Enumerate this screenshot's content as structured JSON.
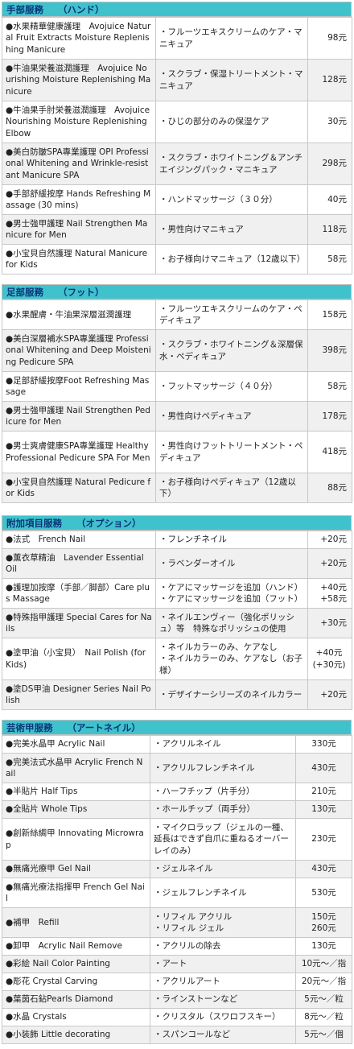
{
  "sections": [
    {
      "title": "手部服務",
      "subtitle": "（ハンド）",
      "rows": [
        {
          "name": "●水果精華健康護理　Avojuice Natural Fruit Extracts Moisture Replenishing Manicure",
          "desc": "・フルーツエキスクリームのケア・マニキュア",
          "price": "98元"
        },
        {
          "name": "●牛油果栄養滋潤護理　Avojuice Nourishing Moisture Replenishing Manicure",
          "desc": "・スクラブ・保湿トリートメント・マニキュア",
          "price": "128元"
        },
        {
          "name": "●牛油果手肘栄養滋潤護理　Avojuice Nourishing Moisture Replenishing Elbow",
          "desc": "・ひじの部分のみの保湿ケア",
          "price": "30元"
        },
        {
          "name": "●美白防皺SPA專業護理 OPI Professional Whitening and Wrinkle-resistant Manicure SPA",
          "desc": "・スクラブ・ホワイトニング＆アンチエイジングパック・マニキュア",
          "price": "298元"
        },
        {
          "name": "●手部舒緩按摩 Hands Refreshing Massage (30 mins)",
          "desc": "・ハンドマッサージ（３０分）",
          "price": "40元"
        },
        {
          "name": "●男士強甲護理 Nail Strengthen Manicure for Men",
          "desc": "・男性向けマニキュア",
          "price": "118元"
        },
        {
          "name": "●小宝貝自然護理 Natural Manicure for Kids",
          "desc": "・お子様向けマニキュア（12歳以下）",
          "price": "58元"
        }
      ]
    },
    {
      "title": "足部服務",
      "subtitle": "（フット）",
      "rows": [
        {
          "name": "●水果醒膚・牛油果深層滋潤護理",
          "desc": "・フルーツエキスクリームのケア・ペディキュア",
          "price": "158元"
        },
        {
          "name": "●美白深層補水SPA專業護理 Professional Whitening and Deep Moistening Pedicure SPA",
          "desc": "・スクラブ・ホワイトニング＆深層保水・ペディキュア",
          "price": "398元"
        },
        {
          "name": "●足部舒緩按摩Foot Refreshing Massage",
          "desc": "・フットマッサージ（４０分）",
          "price": "58元"
        },
        {
          "name": "●男士強甲護理 Nail Strengthen Pedicure for Men",
          "desc": "・男性向けペディキュア",
          "price": "178元"
        },
        {
          "name": "●男士爽膚健康SPA專業護理 Healthy Professional Pedicure SPA For Men",
          "desc": "・男性向けフットトリートメント・ペディキュア",
          "price": "418元"
        },
        {
          "name": "●小宝貝自然護理 Natural Pedicure for Kids",
          "desc": "・お子様向けペディキュア（12歳以下）",
          "price": "88元"
        }
      ]
    },
    {
      "title": "附加項目服務",
      "subtitle": "（オプション）",
      "rows": [
        {
          "name": "●法式　French Nail",
          "desc": "・フレンチネイル",
          "price": "+20元"
        },
        {
          "name": "●薫衣草精油　Lavender Essential Oil",
          "desc": "・ラベンダーオイル",
          "price": "+20元"
        },
        {
          "name": "●護理加按摩（手部／脚部）Care plus Massage",
          "desc": "・ケアにマッサージを追加（ハンド）\n・ケアにマッサージを追加（フット）",
          "price": "+40元\n+58元"
        },
        {
          "name": "●特殊指甲護理 Special Cares for Nails",
          "desc": "・ネイルエンヴィー（強化ポリッシュ）等　特殊なポリッシュの使用",
          "price": "+30元"
        },
        {
          "name": "●塗甲油（小宝貝）　Nail Polish (for Kids)",
          "desc": "・ネイルカラーのみ、ケアなし\n・ネイルカラーのみ、ケアなし（お子様）",
          "price": "+40元\n(+30元)"
        },
        {
          "name": "●塗DS甲油 Designer Series Nail Polish",
          "desc": "・デザイナーシリーズのネイルカラー",
          "price": "+20元"
        }
      ]
    },
    {
      "title": "芸術甲服務",
      "subtitle": "（アートネイル）",
      "rows": [
        {
          "name": "●完美水晶甲 Acrylic Nail",
          "desc": "・アクリルネイル",
          "price": "330元"
        },
        {
          "name": "●完美法式水晶甲 Acrylic French Nail",
          "desc": "・アクリルフレンチネイル",
          "price": "430元"
        },
        {
          "name": "●半貼片 Half Tips",
          "desc": "・ハーフチップ（片手分）",
          "price": "210元"
        },
        {
          "name": "●全貼片 Whole Tips",
          "desc": "・ホールチップ（両手分）",
          "price": "130元"
        },
        {
          "name": "●創新絲綢甲 Innovating Microwrap",
          "desc": "・マイクロラップ（ジェルの一種、延長はできず自爪に重ねるオーバーレイのみ）",
          "price": "230元"
        },
        {
          "name": "●無痛光療甲 Gel Nail",
          "desc": "・ジェルネイル",
          "price": "430元"
        },
        {
          "name": "●無痛光療法指揮甲 French Gel Nail",
          "desc": "・ジェルフレンチネイル",
          "price": "530元"
        },
        {
          "name": "●補甲　Refill",
          "desc": "・リフィル アクリル\n・リフィル ジェル",
          "price": "150元\n260元"
        },
        {
          "name": "●卸甲　Acrylic Nail Remove",
          "desc": "・アクリルの除去",
          "price": "130元"
        },
        {
          "name": "●彩絵 Nail Color Painting",
          "desc": "・アート",
          "price": "10元～／指"
        },
        {
          "name": "●彫花 Crystal Carving",
          "desc": "・アクリルアート",
          "price": "20元～／指"
        },
        {
          "name": "●葉茵石鉆Pearls Diamond",
          "desc": "・ラインストーンなど",
          "price": "5元～／粒"
        },
        {
          "name": "●水晶 Crystals",
          "desc": "・クリスタル（スワロフスキー）",
          "price": "8元～／粒"
        },
        {
          "name": "●小装飾 Little decorating",
          "desc": "・スパンコールなど",
          "price": "5元～／個"
        }
      ]
    }
  ]
}
